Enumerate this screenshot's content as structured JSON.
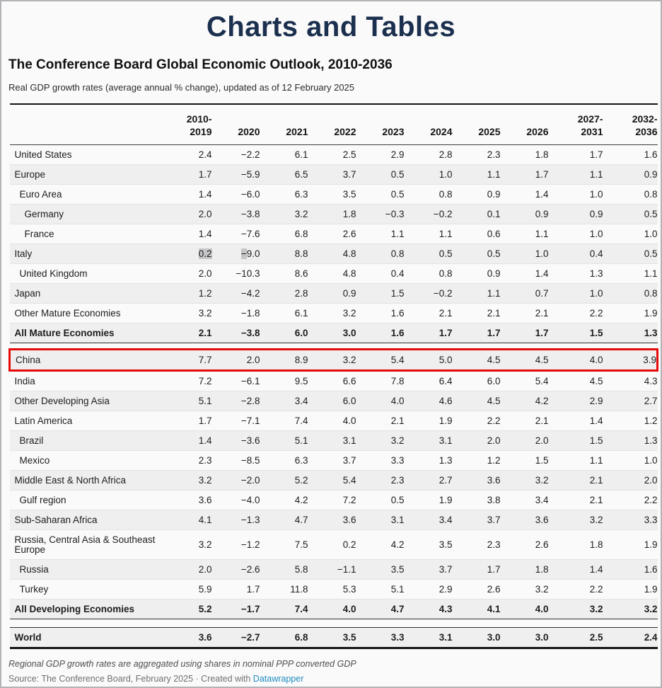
{
  "page": {
    "title": "Charts and Tables",
    "heading": "The Conference Board Global Economic Outlook, 2010-2036",
    "subtitle": "Real GDP growth rates (average annual % change), updated as of 12 February 2025",
    "footnote": "Regional GDP growth rates are aggregated using shares in nominal PPP converted GDP",
    "source_prefix": "Source: The Conference Board, February 2025 · Created with ",
    "source_link_label": "Datawrapper"
  },
  "colors": {
    "title_navy": "#1b2f4e",
    "highlight_row_border": "#e60b0b",
    "text_selection_gray": "#c6c6c8",
    "link_blue": "#1e8cbf",
    "row_stripe": "#efeff0",
    "rule_black": "#141414"
  },
  "chart_data": {
    "type": "table",
    "title": "The Conference Board Global Economic Outlook, 2010-2036",
    "subtitle": "Real GDP growth rates (average annual % change), updated as of 12 February 2025",
    "columns": [
      "2010-\n2019",
      "2020",
      "2021",
      "2022",
      "2023",
      "2024",
      "2025",
      "2026",
      "2027-\n2031",
      "2032-\n2036"
    ],
    "rows": [
      {
        "label": "United States",
        "indent": 0,
        "shaded": false,
        "kind": "normal",
        "values": [
          "2.4",
          "−2.2",
          "6.1",
          "2.5",
          "2.9",
          "2.8",
          "2.3",
          "1.8",
          "1.7",
          "1.6"
        ]
      },
      {
        "label": "Europe",
        "indent": 0,
        "shaded": true,
        "kind": "normal",
        "values": [
          "1.7",
          "−5.9",
          "6.5",
          "3.7",
          "0.5",
          "1.0",
          "1.1",
          "1.7",
          "1.1",
          "0.9"
        ]
      },
      {
        "label": "Euro Area",
        "indent": 1,
        "shaded": false,
        "kind": "normal",
        "values": [
          "1.4",
          "−6.0",
          "6.3",
          "3.5",
          "0.5",
          "0.8",
          "0.9",
          "1.4",
          "1.0",
          "0.8"
        ]
      },
      {
        "label": "Germany",
        "indent": 2,
        "shaded": true,
        "kind": "normal",
        "values": [
          "2.0",
          "−3.8",
          "3.2",
          "1.8",
          "−0.3",
          "−0.2",
          "0.1",
          "0.9",
          "0.9",
          "0.5"
        ]
      },
      {
        "label": "France",
        "indent": 2,
        "shaded": false,
        "kind": "normal",
        "values": [
          "1.4",
          "−7.6",
          "6.8",
          "2.6",
          "1.1",
          "1.1",
          "0.6",
          "1.1",
          "1.0",
          "1.0"
        ]
      },
      {
        "label": "Italy",
        "indent": 0,
        "shaded": true,
        "kind": "normal",
        "values": [
          "0.2",
          "−9.0",
          "8.8",
          "4.8",
          "0.8",
          "0.5",
          "0.5",
          "1.0",
          "0.4",
          "0.5"
        ],
        "sel": {
          "0": "all",
          "1": "first"
        }
      },
      {
        "label": "United Kingdom",
        "indent": 1,
        "shaded": false,
        "kind": "normal",
        "values": [
          "2.0",
          "−10.3",
          "8.6",
          "4.8",
          "0.4",
          "0.8",
          "0.9",
          "1.4",
          "1.3",
          "1.1"
        ]
      },
      {
        "label": "Japan",
        "indent": 0,
        "shaded": true,
        "kind": "normal",
        "values": [
          "1.2",
          "−4.2",
          "2.8",
          "0.9",
          "1.5",
          "−0.2",
          "1.1",
          "0.7",
          "1.0",
          "0.8"
        ]
      },
      {
        "label": "Other Mature Economies",
        "indent": 0,
        "shaded": false,
        "kind": "normal",
        "values": [
          "3.2",
          "−1.8",
          "6.1",
          "3.2",
          "1.6",
          "2.1",
          "2.1",
          "2.1",
          "2.2",
          "1.9"
        ]
      },
      {
        "label": "All Mature Economies",
        "indent": 0,
        "shaded": true,
        "kind": "summary",
        "values": [
          "2.1",
          "−3.8",
          "6.0",
          "3.0",
          "1.6",
          "1.7",
          "1.7",
          "1.7",
          "1.5",
          "1.3"
        ]
      },
      {
        "label": "China",
        "indent": 0,
        "shaded": true,
        "kind": "normal",
        "highlight": true,
        "gap_before": 7,
        "values": [
          "7.7",
          "2.0",
          "8.9",
          "3.2",
          "5.4",
          "5.0",
          "4.5",
          "4.5",
          "4.0",
          "3.9"
        ]
      },
      {
        "label": "India",
        "indent": 0,
        "shaded": false,
        "kind": "normal",
        "values": [
          "7.2",
          "−6.1",
          "9.5",
          "6.6",
          "7.8",
          "6.4",
          "6.0",
          "5.4",
          "4.5",
          "4.3"
        ]
      },
      {
        "label": "Other Developing Asia",
        "indent": 0,
        "shaded": true,
        "kind": "normal",
        "values": [
          "5.1",
          "−2.8",
          "3.4",
          "6.0",
          "4.0",
          "4.6",
          "4.5",
          "4.2",
          "2.9",
          "2.7"
        ]
      },
      {
        "label": "Latin America",
        "indent": 0,
        "shaded": false,
        "kind": "normal",
        "values": [
          "1.7",
          "−7.1",
          "7.4",
          "4.0",
          "2.1",
          "1.9",
          "2.2",
          "2.1",
          "1.4",
          "1.2"
        ]
      },
      {
        "label": "Brazil",
        "indent": 1,
        "shaded": true,
        "kind": "normal",
        "values": [
          "1.4",
          "−3.6",
          "5.1",
          "3.1",
          "3.2",
          "3.1",
          "2.0",
          "2.0",
          "1.5",
          "1.3"
        ]
      },
      {
        "label": "Mexico",
        "indent": 1,
        "shaded": false,
        "kind": "normal",
        "values": [
          "2.3",
          "−8.5",
          "6.3",
          "3.7",
          "3.3",
          "1.3",
          "1.2",
          "1.5",
          "1.1",
          "1.0"
        ]
      },
      {
        "label": "Middle East & North Africa",
        "indent": 0,
        "shaded": true,
        "kind": "normal",
        "values": [
          "3.2",
          "−2.0",
          "5.2",
          "5.4",
          "2.3",
          "2.7",
          "3.6",
          "3.2",
          "2.1",
          "2.0"
        ]
      },
      {
        "label": "Gulf region",
        "indent": 1,
        "shaded": false,
        "kind": "normal",
        "values": [
          "3.6",
          "−4.0",
          "4.2",
          "7.2",
          "0.5",
          "1.9",
          "3.8",
          "3.4",
          "2.1",
          "2.2"
        ]
      },
      {
        "label": "Sub-Saharan Africa",
        "indent": 0,
        "shaded": true,
        "kind": "normal",
        "values": [
          "4.1",
          "−1.3",
          "4.7",
          "3.6",
          "3.1",
          "3.4",
          "3.7",
          "3.6",
          "3.2",
          "3.3"
        ]
      },
      {
        "label": "Russia, Central Asia & Southeast Europe",
        "indent": 0,
        "shaded": false,
        "kind": "normal",
        "values": [
          "3.2",
          "−1.2",
          "7.5",
          "0.2",
          "4.2",
          "3.5",
          "2.3",
          "2.6",
          "1.8",
          "1.9"
        ]
      },
      {
        "label": "Russia",
        "indent": 1,
        "shaded": true,
        "kind": "normal",
        "values": [
          "2.0",
          "−2.6",
          "5.8",
          "−1.1",
          "3.5",
          "3.7",
          "1.7",
          "1.8",
          "1.4",
          "1.6"
        ]
      },
      {
        "label": "Turkey",
        "indent": 1,
        "shaded": false,
        "kind": "normal",
        "values": [
          "5.9",
          "1.7",
          "11.8",
          "5.3",
          "5.1",
          "2.9",
          "2.6",
          "3.2",
          "2.2",
          "1.9"
        ]
      },
      {
        "label": "All Developing Economies",
        "indent": 0,
        "shaded": true,
        "kind": "summary",
        "values": [
          "5.2",
          "−1.7",
          "7.4",
          "4.0",
          "4.7",
          "4.3",
          "4.1",
          "4.0",
          "3.2",
          "3.2"
        ]
      },
      {
        "label": "World",
        "indent": 0,
        "shaded": true,
        "kind": "summary final",
        "gap_before": 11,
        "values": [
          "3.6",
          "−2.7",
          "6.8",
          "3.5",
          "3.3",
          "3.1",
          "3.0",
          "3.0",
          "2.5",
          "2.4"
        ]
      }
    ]
  }
}
